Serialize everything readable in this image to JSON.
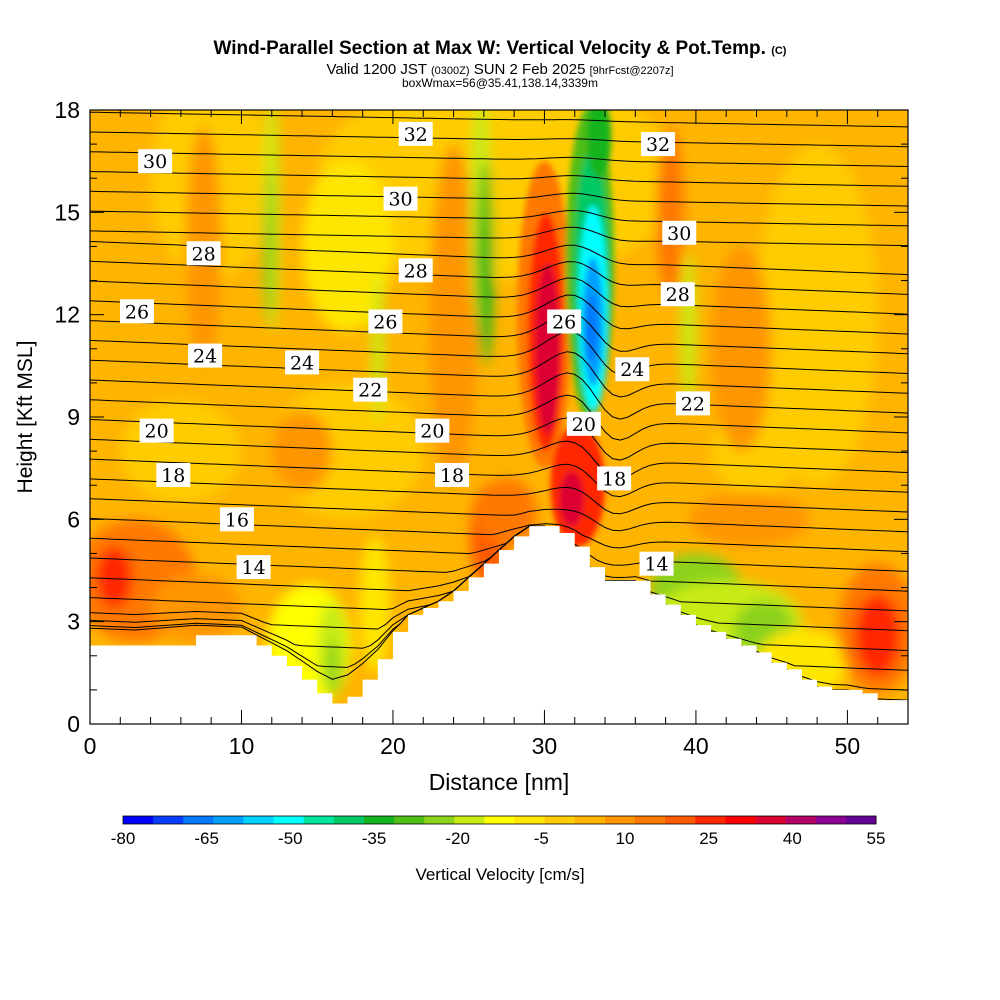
{
  "title": {
    "main": "Wind-Parallel Section at Max W: Vertical Velocity & Pot.Temp.",
    "copyright": "(C)",
    "valid_prefix": "Valid 1200 JST",
    "valid_utc": "(0300Z)",
    "valid_date": "SUN 2 Feb 2025",
    "forecast": "[9hrFcst@2207z]",
    "box_info": "boxWmax=56@35.41,138.14,3339m"
  },
  "chart_data": {
    "type": "heatmap",
    "xlabel": "Distance [nm]",
    "ylabel": "Height [Kft MSL]",
    "xlim": [
      0,
      54
    ],
    "ylim": [
      0,
      18
    ],
    "x_ticks": [
      0,
      10,
      20,
      30,
      40,
      50
    ],
    "y_ticks": [
      0,
      3,
      6,
      9,
      12,
      15,
      18
    ],
    "fill_variable": "Vertical Velocity [cm/s]",
    "colorbar": {
      "label": "Vertical Velocity [cm/s]",
      "tick_labels": [
        "-80",
        "-65",
        "-50",
        "-35",
        "-20",
        "-5",
        "10",
        "25",
        "40",
        "55"
      ],
      "colors": [
        "#0000ff",
        "#0a3cff",
        "#0078ff",
        "#00a0ff",
        "#00d2ff",
        "#00ffff",
        "#00e6a0",
        "#00c864",
        "#14b41e",
        "#50be14",
        "#8cd21e",
        "#c8eb14",
        "#ffff00",
        "#ffe600",
        "#ffcc00",
        "#ffb400",
        "#ff9600",
        "#ff7800",
        "#ff5a00",
        "#ff2800",
        "#ff0000",
        "#dc0032",
        "#b40064",
        "#8c0096",
        "#640096"
      ]
    },
    "background_level": "5 to 10 cm/s (orange)",
    "max_updraft": {
      "x": 30,
      "y_range": [
        9,
        14
      ]
    },
    "max_downdraft": {
      "x": 33,
      "y_range": [
        9,
        15
      ]
    },
    "terrain_profile": {
      "x": [
        0,
        3,
        7,
        10,
        11,
        12,
        13,
        14,
        15,
        16,
        17,
        18,
        19,
        20,
        21,
        22,
        23,
        24,
        25,
        26,
        27,
        28,
        29,
        30,
        31,
        32,
        33,
        34,
        35,
        36,
        37,
        38,
        39,
        40,
        41,
        42,
        43,
        44,
        45,
        46,
        47,
        48,
        49,
        50,
        51,
        52,
        53,
        54
      ],
      "y": [
        2.3,
        2.3,
        2.6,
        2.6,
        2.3,
        2.0,
        1.7,
        1.3,
        0.9,
        0.6,
        0.8,
        1.3,
        1.9,
        2.7,
        3.2,
        3.4,
        3.6,
        3.9,
        4.3,
        4.7,
        5.1,
        5.5,
        5.8,
        5.8,
        5.6,
        5.2,
        4.6,
        4.2,
        4.2,
        4.2,
        3.8,
        3.5,
        3.2,
        2.9,
        2.7,
        2.5,
        2.3,
        2.1,
        1.8,
        1.6,
        1.3,
        1.1,
        1.0,
        1.0,
        0.9,
        0.7,
        0.7,
        0.7
      ]
    },
    "contour_variable": "Potential Temperature",
    "contour_labels": [
      {
        "text": "32",
        "x": 21.5,
        "y": 17.3
      },
      {
        "text": "32",
        "x": 37.5,
        "y": 17.0
      },
      {
        "text": "30",
        "x": 4.3,
        "y": 16.5
      },
      {
        "text": "30",
        "x": 20.5,
        "y": 15.4
      },
      {
        "text": "30",
        "x": 38.9,
        "y": 14.4
      },
      {
        "text": "28",
        "x": 7.5,
        "y": 13.8
      },
      {
        "text": "28",
        "x": 21.5,
        "y": 13.3
      },
      {
        "text": "28",
        "x": 38.8,
        "y": 12.6
      },
      {
        "text": "26",
        "x": 3.1,
        "y": 12.1
      },
      {
        "text": "26",
        "x": 19.5,
        "y": 11.8
      },
      {
        "text": "26",
        "x": 31.3,
        "y": 11.8
      },
      {
        "text": "24",
        "x": 7.6,
        "y": 10.8
      },
      {
        "text": "24",
        "x": 14.0,
        "y": 10.6
      },
      {
        "text": "24",
        "x": 35.8,
        "y": 10.4
      },
      {
        "text": "22",
        "x": 18.5,
        "y": 9.8
      },
      {
        "text": "22",
        "x": 39.8,
        "y": 9.4
      },
      {
        "text": "20",
        "x": 4.4,
        "y": 8.6
      },
      {
        "text": "20",
        "x": 22.6,
        "y": 8.6
      },
      {
        "text": "20",
        "x": 32.6,
        "y": 8.8
      },
      {
        "text": "18",
        "x": 5.5,
        "y": 7.3
      },
      {
        "text": "18",
        "x": 23.9,
        "y": 7.3
      },
      {
        "text": "18",
        "x": 34.6,
        "y": 7.2
      },
      {
        "text": "16",
        "x": 9.7,
        "y": 6.0
      },
      {
        "text": "14",
        "x": 10.8,
        "y": 4.6
      },
      {
        "text": "14",
        "x": 37.4,
        "y": 4.7
      }
    ]
  }
}
